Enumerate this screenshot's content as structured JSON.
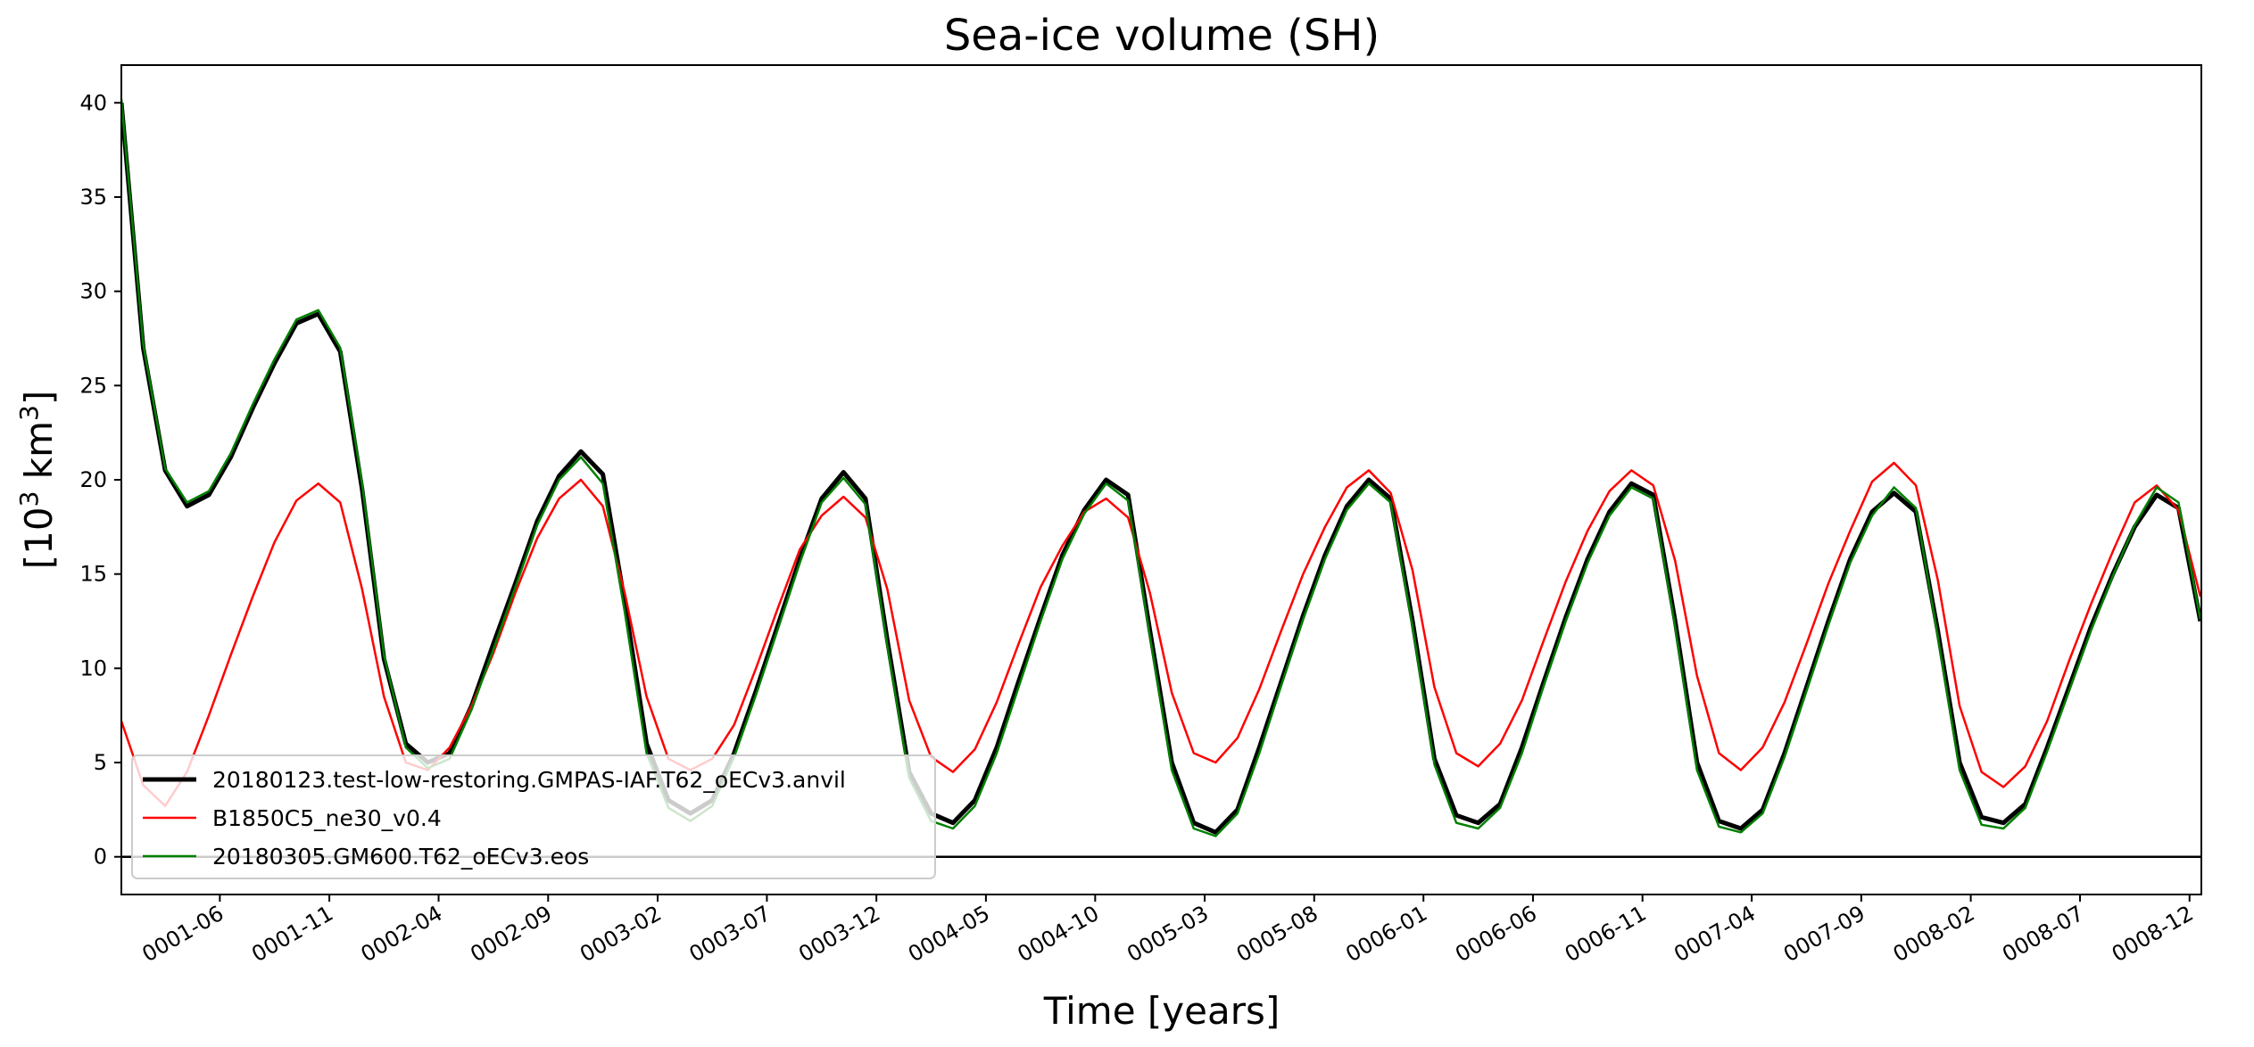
{
  "chart_data": {
    "type": "line",
    "title": "Sea-ice volume (SH)",
    "xlabel": "Time [years]",
    "ylabel_base": "[10",
    "ylabel_exp1": "3",
    "ylabel_mid": " km",
    "ylabel_exp2": "3",
    "ylabel_end": "]",
    "ylim": [
      -2,
      42
    ],
    "xlim": [
      0.0,
      7.92
    ],
    "yticks": [
      0,
      5,
      10,
      15,
      20,
      25,
      30,
      35,
      40
    ],
    "xticks": [
      {
        "label": "0001-06",
        "value": 0.375
      },
      {
        "label": "0001-11",
        "value": 0.792
      },
      {
        "label": "0002-04",
        "value": 1.208
      },
      {
        "label": "0002-09",
        "value": 1.625
      },
      {
        "label": "0003-02",
        "value": 2.042
      },
      {
        "label": "0003-07",
        "value": 2.458
      },
      {
        "label": "0003-12",
        "value": 2.875
      },
      {
        "label": "0004-05",
        "value": 3.292
      },
      {
        "label": "0004-10",
        "value": 3.708
      },
      {
        "label": "0005-03",
        "value": 4.125
      },
      {
        "label": "0005-08",
        "value": 4.542
      },
      {
        "label": "0006-01",
        "value": 4.958
      },
      {
        "label": "0006-06",
        "value": 5.375
      },
      {
        "label": "0006-11",
        "value": 5.792
      },
      {
        "label": "0007-04",
        "value": 6.208
      },
      {
        "label": "0007-09",
        "value": 6.625
      },
      {
        "label": "0008-02",
        "value": 7.042
      },
      {
        "label": "0008-07",
        "value": 7.458
      },
      {
        "label": "0008-12",
        "value": 7.875
      }
    ],
    "hline": 0,
    "grid": false,
    "legend_position": "lower-left",
    "x_start": 0.0,
    "x_step": 0.08333,
    "series": [
      {
        "name": "20180123.test-low-restoring.GMPAS-IAF.T62_oECv3.anvil",
        "color": "#000000",
        "width": 5,
        "values": [
          40.0,
          27.0,
          20.5,
          18.6,
          19.2,
          21.2,
          23.8,
          26.2,
          28.3,
          28.8,
          26.8,
          19.5,
          10.5,
          6.0,
          5.0,
          5.5,
          8.0,
          11.3,
          14.5,
          17.8,
          20.2,
          21.5,
          20.3,
          13.5,
          6.0,
          3.0,
          2.3,
          3.0,
          5.5,
          8.8,
          12.3,
          15.8,
          19.0,
          20.4,
          19.0,
          11.5,
          4.5,
          2.3,
          1.8,
          3.0,
          5.8,
          9.3,
          12.7,
          16.0,
          18.4,
          20.0,
          19.2,
          12.0,
          5.0,
          1.8,
          1.3,
          2.5,
          5.8,
          9.3,
          12.8,
          16.0,
          18.6,
          20.0,
          19.0,
          12.5,
          5.2,
          2.2,
          1.8,
          2.8,
          5.8,
          9.3,
          12.7,
          15.8,
          18.3,
          19.8,
          19.2,
          12.5,
          5.0,
          1.9,
          1.5,
          2.5,
          5.5,
          9.0,
          12.5,
          15.8,
          18.3,
          19.3,
          18.3,
          12.0,
          5.0,
          2.1,
          1.8,
          2.8,
          5.8,
          9.0,
          12.2,
          15.0,
          17.5,
          19.2,
          18.5,
          12.5
        ]
      },
      {
        "name": "B1850C5_ne30_v0.4",
        "color": "#ff0000",
        "width": 2.5,
        "values": [
          7.2,
          3.8,
          2.7,
          4.5,
          7.5,
          10.7,
          13.8,
          16.7,
          18.9,
          19.8,
          18.8,
          14.2,
          8.5,
          5.0,
          4.6,
          5.8,
          8.0,
          10.8,
          14.0,
          16.9,
          19.0,
          20.0,
          18.6,
          14.0,
          8.5,
          5.2,
          4.6,
          5.2,
          7.0,
          10.0,
          13.2,
          16.3,
          18.1,
          19.1,
          18.0,
          14.2,
          8.3,
          5.3,
          4.5,
          5.7,
          8.2,
          11.3,
          14.3,
          16.5,
          18.3,
          19.0,
          18.0,
          14.0,
          8.7,
          5.5,
          5.0,
          6.3,
          8.9,
          12.0,
          15.0,
          17.5,
          19.6,
          20.5,
          19.3,
          15.2,
          9.0,
          5.5,
          4.8,
          6.0,
          8.3,
          11.5,
          14.6,
          17.3,
          19.4,
          20.5,
          19.7,
          15.7,
          9.6,
          5.5,
          4.6,
          5.8,
          8.2,
          11.3,
          14.5,
          17.3,
          19.9,
          20.9,
          19.7,
          14.7,
          8.0,
          4.5,
          3.7,
          4.8,
          7.2,
          10.4,
          13.4,
          16.2,
          18.8,
          19.7,
          18.4,
          13.8
        ]
      },
      {
        "name": "20180305.GM600.T62_oECv3.eos",
        "color": "#008000",
        "width": 2.5,
        "values": [
          40.2,
          27.2,
          20.6,
          18.8,
          19.4,
          21.4,
          24.0,
          26.4,
          28.5,
          29.0,
          27.0,
          19.8,
          10.7,
          5.8,
          4.7,
          5.2,
          7.8,
          11.0,
          14.3,
          17.6,
          20.0,
          21.2,
          19.8,
          13.0,
          5.5,
          2.6,
          1.9,
          2.7,
          5.3,
          8.6,
          12.1,
          15.6,
          18.8,
          20.1,
          18.7,
          11.2,
          4.2,
          1.9,
          1.5,
          2.7,
          5.5,
          9.0,
          12.5,
          15.8,
          18.2,
          19.8,
          18.9,
          11.7,
          4.6,
          1.5,
          1.1,
          2.3,
          5.5,
          9.1,
          12.6,
          15.8,
          18.4,
          19.8,
          18.8,
          12.2,
          4.9,
          1.8,
          1.5,
          2.6,
          5.5,
          9.1,
          12.5,
          15.6,
          18.1,
          19.6,
          19.0,
          12.2,
          4.6,
          1.6,
          1.3,
          2.3,
          5.3,
          8.8,
          12.3,
          15.6,
          18.1,
          19.6,
          18.5,
          11.7,
          4.6,
          1.7,
          1.5,
          2.6,
          5.6,
          8.8,
          12.0,
          14.9,
          17.6,
          19.6,
          18.8,
          12.6
        ]
      }
    ]
  }
}
